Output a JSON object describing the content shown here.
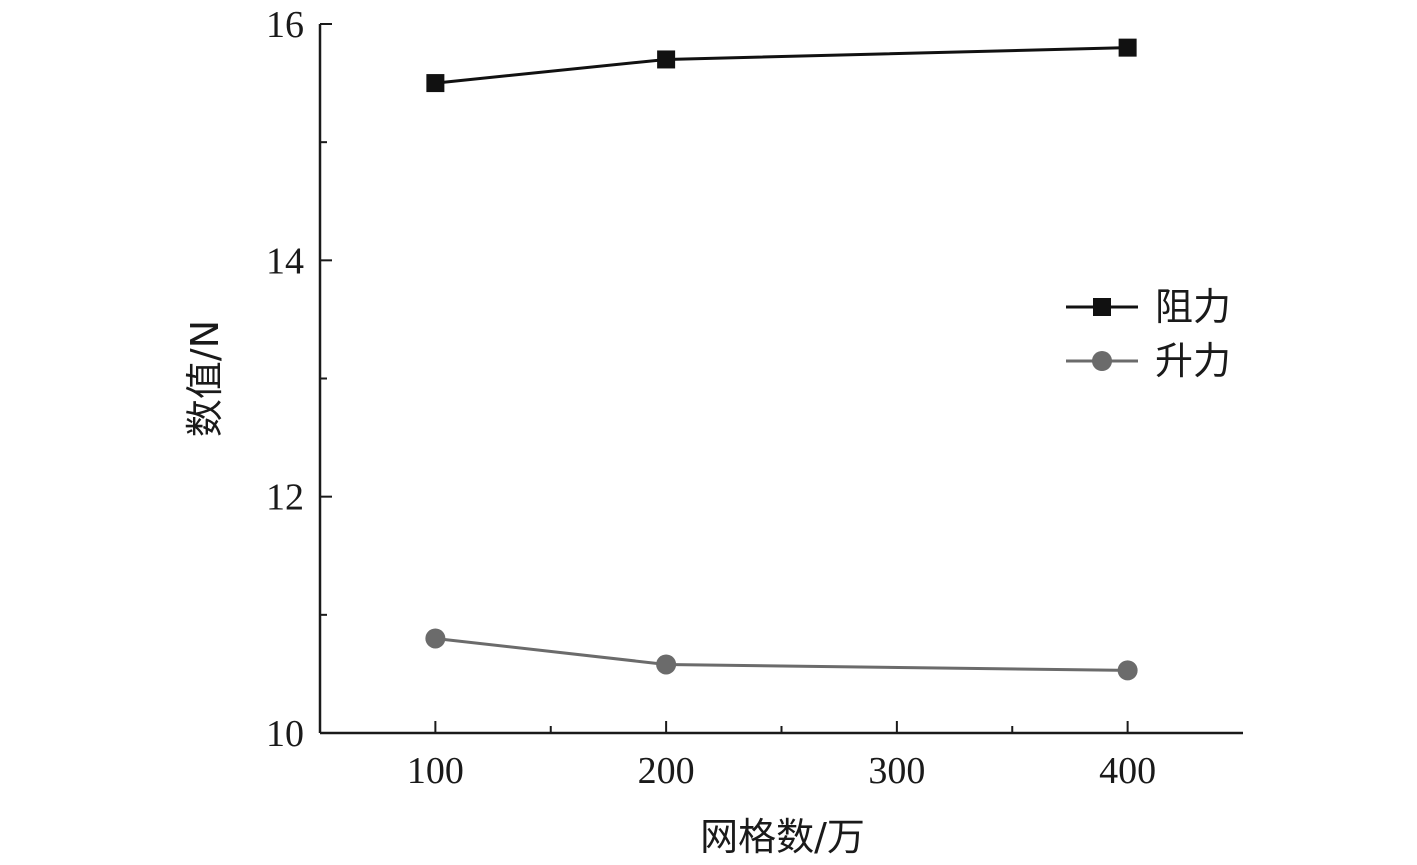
{
  "chart_data": {
    "type": "line",
    "x": [
      100,
      200,
      400
    ],
    "series": [
      {
        "name": "阻力",
        "values": [
          15.5,
          15.7,
          15.8
        ],
        "color": "#111111",
        "marker": "square"
      },
      {
        "name": "升力",
        "values": [
          10.8,
          10.58,
          10.53
        ],
        "color": "#6b6b6b",
        "marker": "circle"
      }
    ],
    "xlabel": "网格数/万",
    "ylabel": "数值/N",
    "xlim": [
      50,
      450
    ],
    "ylim": [
      10,
      16
    ],
    "xticks": [
      100,
      200,
      300,
      400
    ],
    "xticks_minor": [
      150,
      250,
      350
    ],
    "yticks": [
      10,
      12,
      14,
      16
    ],
    "yticks_minor": [
      11,
      13,
      15
    ],
    "legend_position": "right",
    "grid": false
  }
}
